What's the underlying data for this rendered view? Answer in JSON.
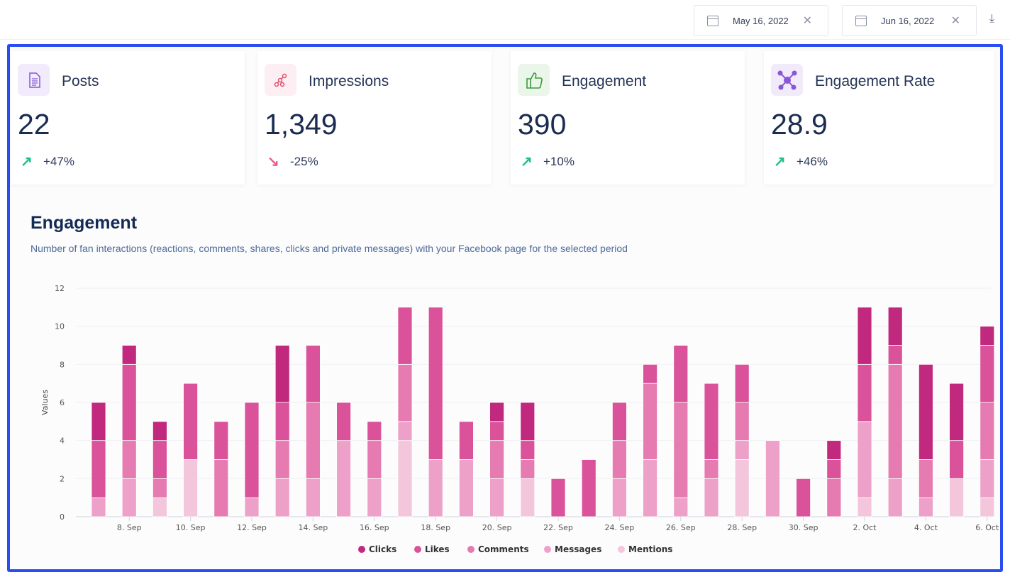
{
  "header": {
    "start_date": "May 16, 2022",
    "end_date": "Jun 16, 2022"
  },
  "cards": [
    {
      "label": "Posts",
      "value": "22",
      "change": "+47%",
      "trend": "up",
      "icon": "document-icon",
      "icon_bg": "#f1ebfb",
      "icon_color": "#8a55d6"
    },
    {
      "label": "Impressions",
      "value": "1,349",
      "change": "-25%",
      "trend": "down",
      "icon": "share-nodes-icon",
      "icon_bg": "#fdeef3",
      "icon_color": "#e0506f"
    },
    {
      "label": "Engagement",
      "value": "390",
      "change": "+10%",
      "trend": "up",
      "icon": "thumbs-up-icon",
      "icon_bg": "#eaf6ea",
      "icon_color": "#3a9a3a"
    },
    {
      "label": "Engagement Rate",
      "value": "28.9",
      "change": "+46%",
      "trend": "up",
      "icon": "network-icon",
      "icon_bg": "#f0eafb",
      "icon_color": "#8a55d6"
    }
  ],
  "colors": {
    "up": "#1fbf8a",
    "down": "#ec5a8f"
  },
  "section": {
    "title": "Engagement",
    "subtitle": "Number of fan interactions (reactions, comments, shares, clicks and private messages) with your Facebook page for the selected period"
  },
  "chart_data": {
    "type": "bar",
    "stacked": true,
    "ylabel": "Values",
    "ylim": [
      0,
      12
    ],
    "yticks": [
      0,
      2,
      4,
      6,
      8,
      10,
      12
    ],
    "grid": true,
    "legend": "bottom",
    "categories": [
      "7 Sep",
      "8 Sep",
      "9 Sep",
      "10 Sep",
      "11 Sep",
      "12 Sep",
      "13 Sep",
      "14 Sep",
      "15 Sep",
      "16 Sep",
      "17 Sep",
      "18 Sep",
      "19 Sep",
      "20 Sep",
      "21 Sep",
      "22 Sep",
      "23 Sep",
      "24 Sep",
      "25 Sep",
      "26 Sep",
      "27 Sep",
      "28 Sep",
      "29 Sep",
      "30 Sep",
      "1 Oct",
      "2 Oct",
      "3 Oct",
      "4 Oct",
      "5 Oct",
      "6 Oct"
    ],
    "xtick_labels": [
      "8. Sep",
      "10. Sep",
      "12. Sep",
      "14. Sep",
      "16. Sep",
      "18. Sep",
      "20. Sep",
      "22. Sep",
      "24. Sep",
      "26. Sep",
      "28. Sep",
      "30. Sep",
      "2. Oct",
      "4. Oct",
      "6. Oct"
    ],
    "series": [
      {
        "name": "Clicks",
        "color": "#c0297d",
        "values": [
          2,
          1,
          1,
          0,
          0,
          0,
          3,
          0,
          0,
          0,
          0,
          0,
          0,
          1,
          2,
          0,
          0,
          0,
          0,
          0,
          0,
          0,
          0,
          0,
          1,
          3,
          2,
          5,
          3,
          1
        ]
      },
      {
        "name": "Likes",
        "color": "#d9529a",
        "values": [
          3,
          4,
          2,
          4,
          2,
          5,
          2,
          3,
          2,
          1,
          3,
          8,
          2,
          1,
          1,
          2,
          3,
          2,
          1,
          3,
          4,
          2,
          0,
          2,
          1,
          3,
          1,
          0,
          2,
          3
        ]
      },
      {
        "name": "Comments",
        "color": "#e57bb0",
        "values": [
          0,
          2,
          1,
          0,
          3,
          0,
          2,
          4,
          0,
          2,
          3,
          0,
          0,
          2,
          1,
          0,
          0,
          2,
          4,
          5,
          1,
          2,
          0,
          0,
          2,
          0,
          6,
          2,
          0,
          3
        ]
      },
      {
        "name": "Messages",
        "color": "#eda0c8",
        "values": [
          1,
          2,
          0,
          0,
          0,
          1,
          2,
          2,
          4,
          2,
          1,
          3,
          3,
          2,
          0,
          0,
          0,
          2,
          3,
          1,
          2,
          1,
          4,
          0,
          0,
          4,
          2,
          1,
          0,
          2
        ]
      },
      {
        "name": "Mentions",
        "color": "#f3c6dc",
        "values": [
          0,
          0,
          1,
          3,
          0,
          0,
          0,
          0,
          0,
          0,
          4,
          0,
          0,
          0,
          2,
          0,
          0,
          0,
          0,
          0,
          0,
          3,
          0,
          0,
          0,
          1,
          0,
          0,
          2,
          1
        ]
      }
    ]
  }
}
